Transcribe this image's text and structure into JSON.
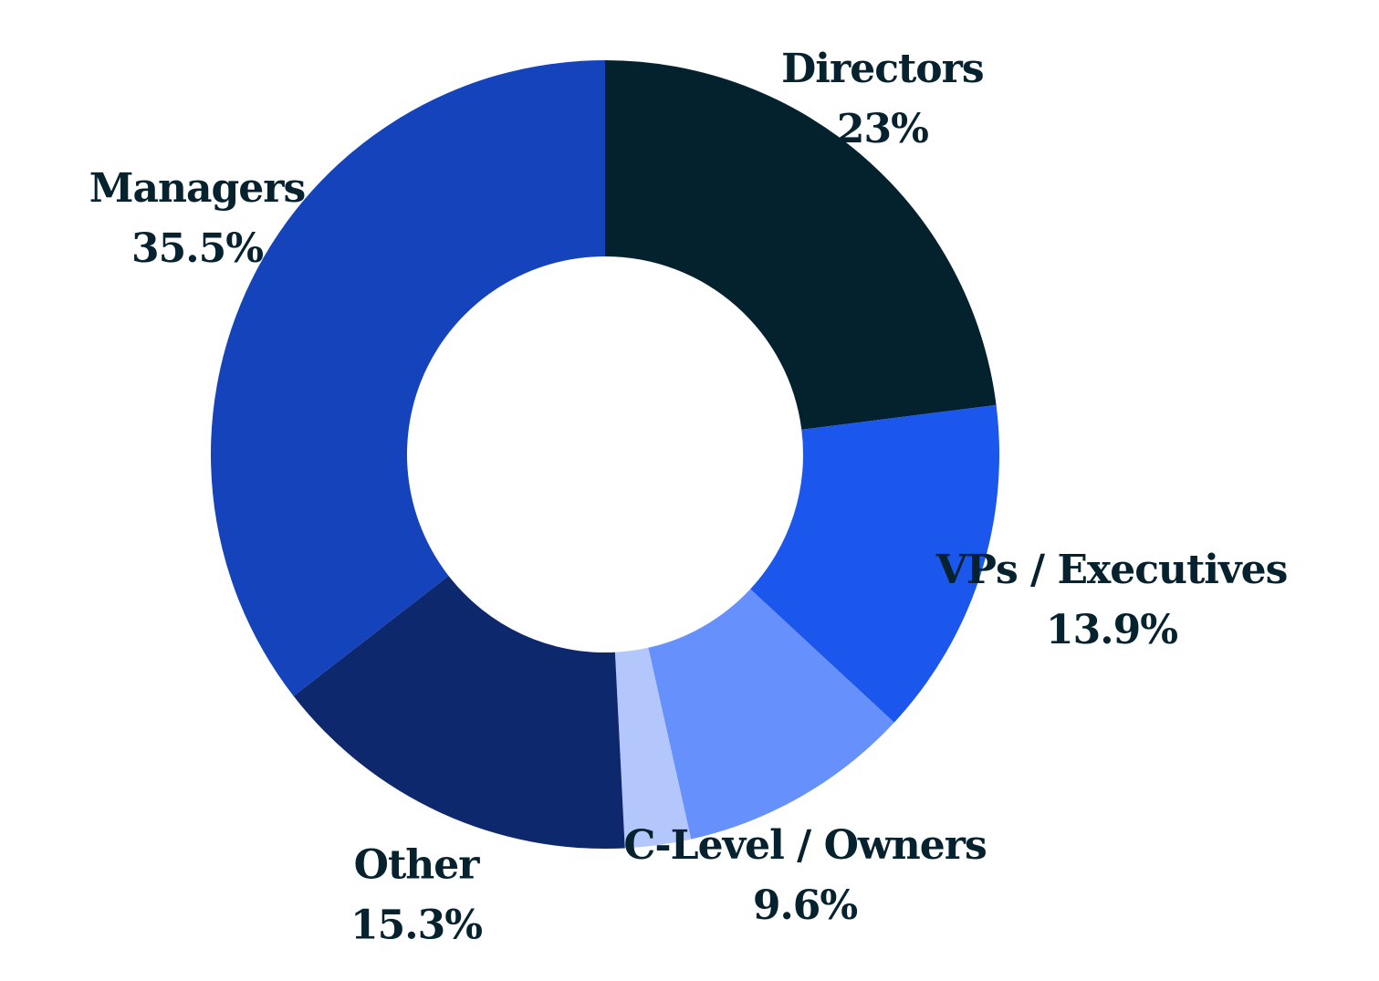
{
  "chart_data": {
    "type": "pie",
    "style": "donut",
    "title": "",
    "slices": [
      {
        "name": "Directors",
        "value": 23.0,
        "value_label": "23%",
        "color": "#03222e"
      },
      {
        "name": "VPs / Executives",
        "value": 13.9,
        "value_label": "13.9%",
        "color": "#1b57ec"
      },
      {
        "name": "C-Level / Owners",
        "value": 9.6,
        "value_label": "9.6%",
        "color": "#6690fc"
      },
      {
        "name": "",
        "value": 2.7,
        "value_label": "",
        "color": "#b3c7fd"
      },
      {
        "name": "Other",
        "value": 15.3,
        "value_label": "15.3%",
        "color": "#0d286c"
      },
      {
        "name": "Managers",
        "value": 35.5,
        "value_label": "35.5%",
        "color": "#1443bc"
      }
    ],
    "start_angle": "12 o'clock",
    "direction": "clockwise",
    "legend": "none"
  }
}
